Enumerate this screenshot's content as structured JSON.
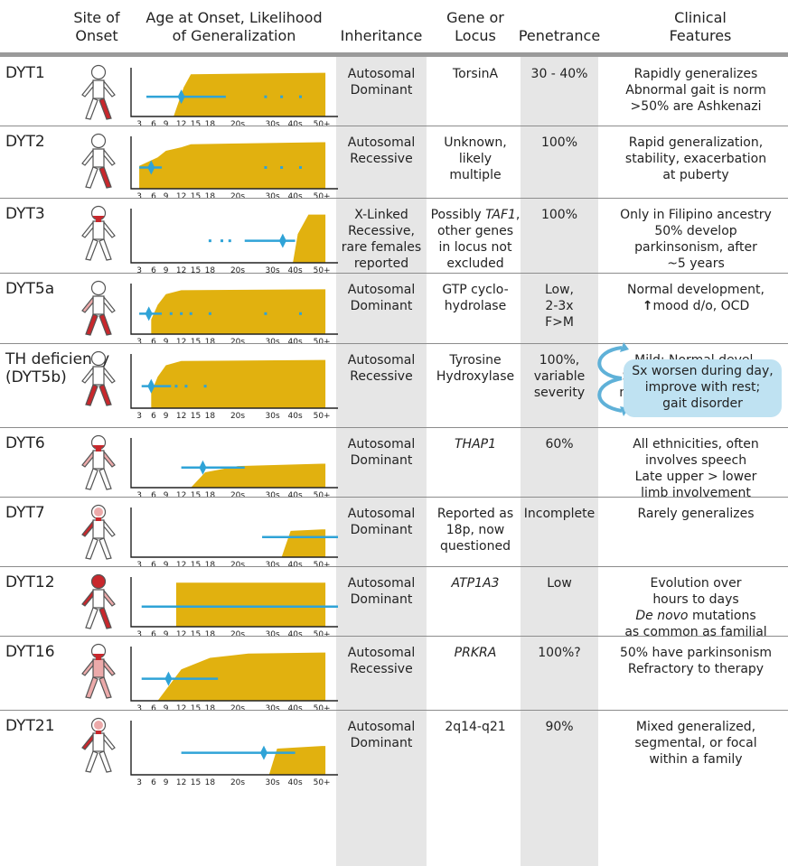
{
  "headers": {
    "site_of_onset": [
      "Site of",
      "Onset"
    ],
    "age_onset": [
      "Age at Onset, Likelihood",
      "of Generalization"
    ],
    "inheritance": "Inheritance",
    "gene": [
      "Gene or",
      "Locus"
    ],
    "penetrance": "Penetrance",
    "clinical": [
      "Clinical",
      "Features"
    ]
  },
  "axis_ticks": [
    "3",
    "6",
    "9",
    "12",
    "15",
    "18",
    "20s",
    "30s",
    "40s",
    "50+"
  ],
  "colors": {
    "gold": "#e1b10f",
    "blue": "#2fa3d7",
    "limb_dark": "#c8272c",
    "limb_light": "#ecaaaa",
    "shade": "#e6e6e6",
    "callout": "#bfe2f2"
  },
  "rows": [
    {
      "name": [
        "DYT1"
      ],
      "inheritance": [
        "Autosomal",
        "Dominant"
      ],
      "gene": [
        "TorsinA"
      ],
      "penetrance": [
        "30 - 40%"
      ],
      "clinical": [
        "Rapidly generalizes",
        "Abnormal gait is norm",
        ">50% are Ashkenazi"
      ]
    },
    {
      "name": [
        "DYT2"
      ],
      "inheritance": [
        "Autosomal",
        "Recessive"
      ],
      "gene": [
        "Unknown,",
        "likely",
        "multiple"
      ],
      "penetrance": [
        "100%"
      ],
      "clinical": [
        "Rapid generalization,",
        "stability, exacerbation",
        "at puberty"
      ]
    },
    {
      "name": [
        "DYT3"
      ],
      "inheritance": [
        "X-Linked",
        "Recessive,",
        "rare females",
        "reported"
      ],
      "gene": [
        "Possibly TAF1,",
        "other genes",
        "in locus not",
        "excluded"
      ],
      "penetrance": [
        "100%"
      ],
      "clinical": [
        "Only in Filipino ancestry",
        "50% develop",
        "parkinsonism, after",
        "~5 years"
      ]
    },
    {
      "name": [
        "DYT5a"
      ],
      "inheritance": [
        "Autosomal",
        "Dominant"
      ],
      "gene": [
        "GTP cyclo-",
        "hydrolase"
      ],
      "penetrance": [
        "Low,",
        "2-3x",
        "F>M"
      ],
      "clinical": [
        "Normal development,",
        "mood d/o, OCD"
      ]
    },
    {
      "name": [
        "TH deficiency",
        "(DYT5b)"
      ],
      "inheritance": [
        "Autosomal",
        "Recessive"
      ],
      "gene": [
        "Tyrosine",
        "Hydroxylase"
      ],
      "penetrance": [
        "100%,",
        "variable",
        "severity"
      ],
      "clinical": [
        "Mild: Normal devel.",
        "Severe: infantile onset,",
        "motor + cognitive delay"
      ]
    },
    {
      "name": [
        "DYT6"
      ],
      "inheritance": [
        "Autosomal",
        "Dominant"
      ],
      "gene": [
        "THAP1"
      ],
      "penetrance": [
        "60%"
      ],
      "clinical": [
        "All ethnicities, often",
        "involves speech",
        "Late upper > lower",
        "limb involvement"
      ]
    },
    {
      "name": [
        "DYT7"
      ],
      "inheritance": [
        "Autosomal",
        "Dominant"
      ],
      "gene": [
        "Reported as",
        "18p, now",
        "questioned"
      ],
      "penetrance": [
        "Incomplete"
      ],
      "clinical": [
        "Rarely generalizes"
      ]
    },
    {
      "name": [
        "DYT12"
      ],
      "inheritance": [
        "Autosomal",
        "Dominant"
      ],
      "gene": [
        "ATP1A3"
      ],
      "penetrance": [
        "Low"
      ],
      "clinical": [
        "Evolution over",
        "hours to days",
        "De novo mutations",
        "as common as familial"
      ]
    },
    {
      "name": [
        "DYT16"
      ],
      "inheritance": [
        "Autosomal",
        "Recessive"
      ],
      "gene": [
        "PRKRA"
      ],
      "penetrance": [
        "100%?"
      ],
      "clinical": [
        "50% have parkinsonism",
        "Refractory to therapy"
      ]
    },
    {
      "name": [
        "DYT21"
      ],
      "inheritance": [
        "Autosomal",
        "Dominant"
      ],
      "gene": [
        "2q14-q21"
      ],
      "penetrance": [
        "90%"
      ],
      "clinical": [
        "Mixed generalized,",
        "segmental, or focal",
        "within a family"
      ]
    }
  ],
  "callout": [
    "Sx worsen during day,",
    "improve with rest;",
    "gait disorder"
  ],
  "figures": [
    {
      "head": "white",
      "neck": false,
      "arms": "none",
      "legs": "right-dark",
      "trunk": "none",
      "note": "arm light left"
    },
    {
      "head": "white",
      "neck": false,
      "arms": "none",
      "legs": "right-dark",
      "trunk": "none"
    },
    {
      "head": "neck-red",
      "neck": true,
      "arms": "none",
      "legs": "none",
      "trunk": "none"
    },
    {
      "head": "white",
      "neck": false,
      "arms": "left-light",
      "legs": "both-dark",
      "trunk": "none"
    },
    {
      "head": "white",
      "neck": false,
      "arms": "none",
      "legs": "both-dark",
      "trunk": "none"
    },
    {
      "head": "neck-red",
      "neck": true,
      "arms": "light",
      "legs": "none",
      "trunk": "none"
    },
    {
      "head": "face-light",
      "neck": true,
      "arms": "left-dark",
      "legs": "none",
      "trunk": "none"
    },
    {
      "head": "red",
      "neck": false,
      "arms": "both",
      "legs": "right-dark",
      "trunk": "none"
    },
    {
      "head": "neck-red",
      "neck": true,
      "arms": "light",
      "legs": "light",
      "trunk": "light"
    },
    {
      "head": "face-light",
      "neck": true,
      "arms": "left-dark",
      "legs": "none",
      "trunk": "none"
    }
  ],
  "chart_data": [
    {
      "type": "area",
      "row": "DYT1",
      "area": [
        [
          10.5,
          0
        ],
        [
          12.5,
          0.62
        ],
        [
          14,
          0.9
        ],
        [
          50,
          0.93
        ]
      ],
      "line": [
        4.5,
        22
      ],
      "diamond": 12,
      "dots": [
        33,
        39,
        46
      ]
    },
    {
      "type": "area",
      "row": "DYT2",
      "area": [
        [
          3,
          0.45
        ],
        [
          7,
          0.62
        ],
        [
          9,
          0.75
        ],
        [
          12,
          0.82
        ],
        [
          14,
          0.88
        ],
        [
          50,
          0.92
        ]
      ],
      "line": [
        3,
        8
      ],
      "diamond": 5.5,
      "dots": [
        33,
        39,
        46
      ]
    },
    {
      "type": "area",
      "row": "DYT3",
      "area": [
        [
          44,
          0
        ],
        [
          45.5,
          0.55
        ],
        [
          47.5,
          0.92
        ],
        [
          50,
          0.92
        ]
      ],
      "line": [
        27,
        45
      ],
      "diamond": 39.5,
      "dots": [
        18,
        21,
        23
      ]
    },
    {
      "type": "area",
      "row": "DYT5a",
      "area": [
        [
          5.5,
          0.3
        ],
        [
          7,
          0.6
        ],
        [
          9,
          0.82
        ],
        [
          12,
          0.9
        ],
        [
          50,
          0.92
        ]
      ],
      "line": [
        3,
        8
      ],
      "diamond": 5,
      "dots": [
        10,
        12,
        14,
        18,
        33,
        46
      ]
    },
    {
      "type": "area",
      "row": "DYT5b",
      "area": [
        [
          5.5,
          0.3
        ],
        [
          7,
          0.6
        ],
        [
          9,
          0.82
        ],
        [
          12,
          0.9
        ],
        [
          50,
          0.92
        ]
      ],
      "line": [
        3.5,
        10
      ],
      "diamond": 5.5,
      "dots": [
        11,
        13,
        17
      ]
    },
    {
      "type": "area",
      "row": "DYT6",
      "area": [
        [
          14,
          0
        ],
        [
          17,
          0.32
        ],
        [
          25,
          0.45
        ],
        [
          50,
          0.5
        ]
      ],
      "line": [
        12,
        27
      ],
      "diamond": 16.5,
      "dots": []
    },
    {
      "type": "area",
      "row": "DYT7",
      "area": [
        [
          39,
          0
        ],
        [
          43,
          0.55
        ],
        [
          50,
          0.58
        ]
      ],
      "line": [
        32,
        50
      ],
      "diamond": null,
      "dots": []
    },
    {
      "type": "area",
      "row": "DYT12",
      "area": [
        [
          11,
          0.92
        ],
        [
          50,
          0.92
        ]
      ],
      "line": [
        3.5,
        50
      ],
      "diamond": null,
      "dots": []
    },
    {
      "type": "area",
      "row": "DYT16",
      "area": [
        [
          7,
          0
        ],
        [
          12,
          0.6
        ],
        [
          18,
          0.82
        ],
        [
          28,
          0.9
        ],
        [
          50,
          0.92
        ]
      ],
      "line": [
        3.5,
        20
      ],
      "diamond": 9.5,
      "dots": []
    },
    {
      "type": "area",
      "row": "DYT21",
      "area": [
        [
          34,
          0
        ],
        [
          37,
          0.5
        ],
        [
          50,
          0.55
        ]
      ],
      "line": [
        12,
        45
      ],
      "diamond": 32.5,
      "dots": []
    }
  ]
}
